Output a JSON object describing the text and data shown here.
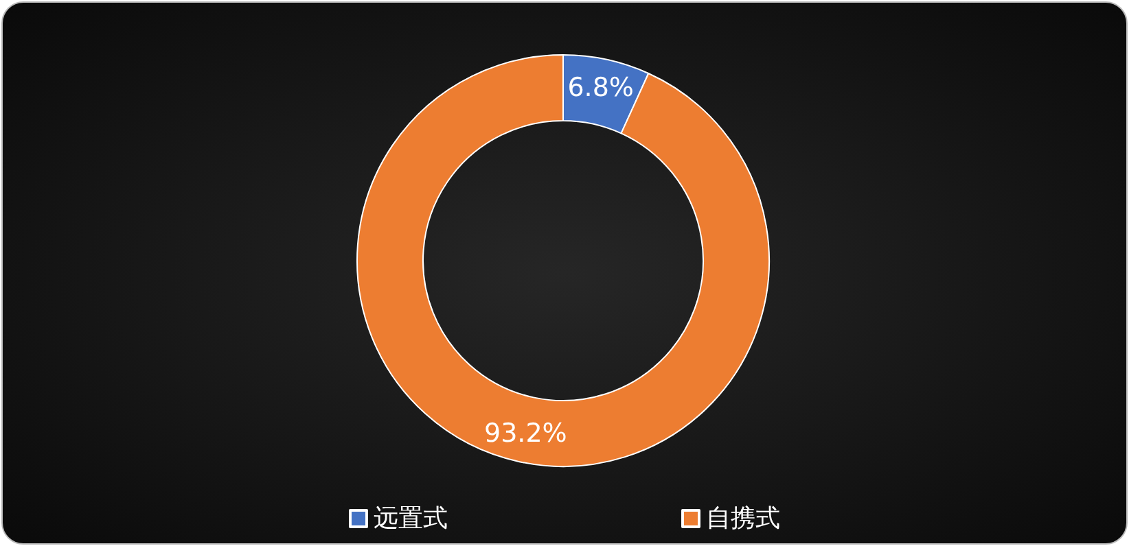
{
  "chart_data": {
    "type": "donut",
    "categories": [
      "远置式",
      "自携式"
    ],
    "values": [
      6.8,
      93.2
    ],
    "value_labels": [
      "6.8%",
      "93.2%"
    ],
    "colors": [
      "#4472c4",
      "#ed7d31"
    ],
    "legend": "bottom"
  }
}
